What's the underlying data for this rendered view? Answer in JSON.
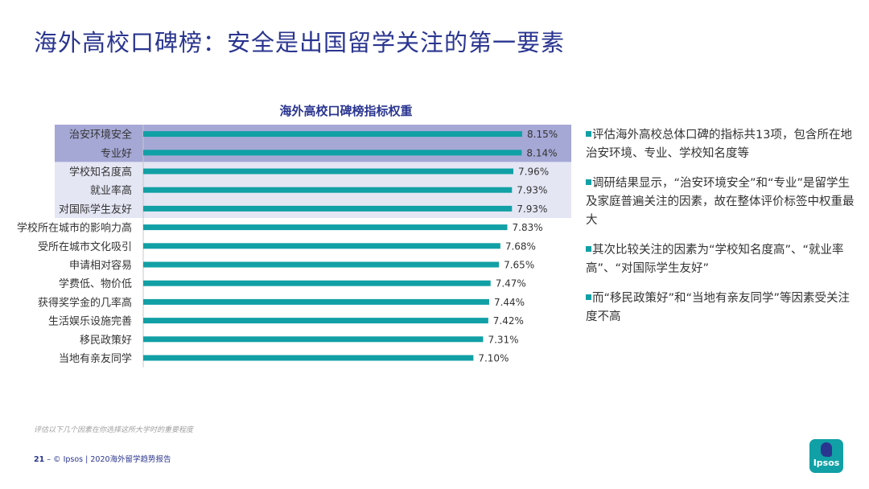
{
  "page": {
    "title": "海外高校口碑榜：安全是出国留学关注的第一要素"
  },
  "chart_data": {
    "type": "bar",
    "orientation": "horizontal",
    "title": "海外高校口碑榜指标权重",
    "categories": [
      "治安环境安全",
      "专业好",
      "学校知名度高",
      "就业率高",
      "对国际学生友好",
      "学校所在城市的影响力高",
      "受所在城市文化吸引",
      "申请相对容易",
      "学费低、物价低",
      "获得奖学金的几率高",
      "生活娱乐设施完善",
      "移民政策好",
      "当地有亲友同学"
    ],
    "values": [
      8.15,
      8.14,
      7.96,
      7.93,
      7.93,
      7.83,
      7.68,
      7.65,
      7.47,
      7.44,
      7.42,
      7.31,
      7.1
    ],
    "value_labels": [
      "8.15%",
      "8.14%",
      "7.96%",
      "7.93%",
      "7.93%",
      "7.83%",
      "7.68%",
      "7.65%",
      "7.47%",
      "7.44%",
      "7.42%",
      "7.31%",
      "7.10%"
    ],
    "highlight_dark": [
      0,
      1
    ],
    "highlight_light": [
      2,
      3,
      4
    ],
    "colors": {
      "bar": "#11a0a5",
      "highlight_dark": "#a5a8d5",
      "highlight_light": "#e4e6f4"
    }
  },
  "bullets": [
    "评估海外高校总体口碑的指标共13项，包含所在地治安环境、专业、学校知名度等",
    "调研结果显示，“治安环境安全”和“专业”是留学生及家庭普遍关注的因素，故在整体评价标签中权重最大",
    "其次比较关注的因素为“学校知名度高”、“就业率高”、“对国际学生友好”",
    "而“移民政策好”和“当地有亲友同学”等因素受关注度不高"
  ],
  "note": "评估以下几个因素在你选择这所大学时的重要程度",
  "footer": {
    "page_number": "21",
    "text": "© Ipsos | 2020海外留学趋势报告"
  },
  "logo": {
    "text": "Ipsos"
  }
}
